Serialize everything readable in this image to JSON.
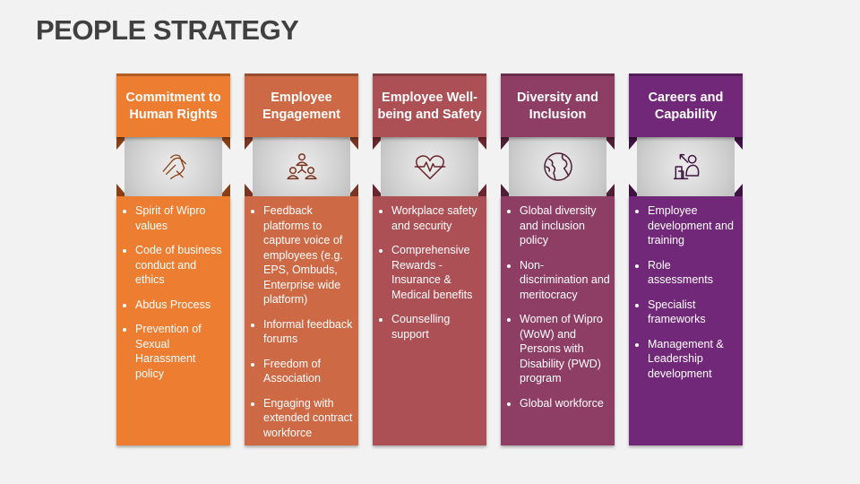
{
  "title": "PEOPLE STRATEGY",
  "columns": [
    {
      "heading": "Commitment to Human Rights",
      "icon": "handshake-icon",
      "color": "#ED7D31",
      "dark": "#8a3f14",
      "items": [
        "Spirit of Wipro values",
        "Code of business conduct and ethics",
        "Abdus Process",
        "Prevention of Sexual Harassment policy"
      ]
    },
    {
      "heading": "Employee Engagement",
      "icon": "team-network-icon",
      "color": "#CD6944",
      "dark": "#7a3520",
      "items": [
        "Feedback platforms to capture voice of employees (e.g. EPS, Ombuds, Enterprise wide platform)",
        "Informal feedback forums",
        "Freedom of Association",
        "Engaging with extended contract workforce"
      ]
    },
    {
      "heading": "Employee Well-being and Safety",
      "icon": "heart-pulse-icon",
      "color": "#AD5055",
      "dark": "#6a262c",
      "items": [
        "Workplace safety and security",
        "Comprehensive Rewards - Insurance & Medical benefits",
        "Counselling support"
      ]
    },
    {
      "heading": "Diversity and Inclusion",
      "icon": "globe-icon",
      "color": "#8E3E64",
      "dark": "#4f1e37",
      "items": [
        "Global diversity and inclusion policy",
        "Non-discrimination and meritocracy",
        "Women of Wipro (WoW) and Persons with Disability (PWD) program",
        "Global workforce"
      ]
    },
    {
      "heading": "Careers and Capability",
      "icon": "career-growth-icon",
      "color": "#722878",
      "dark": "#3e1242",
      "items": [
        "Employee development and training",
        "Role assessments",
        "Specialist frameworks",
        "Management & Leadership development"
      ]
    }
  ]
}
